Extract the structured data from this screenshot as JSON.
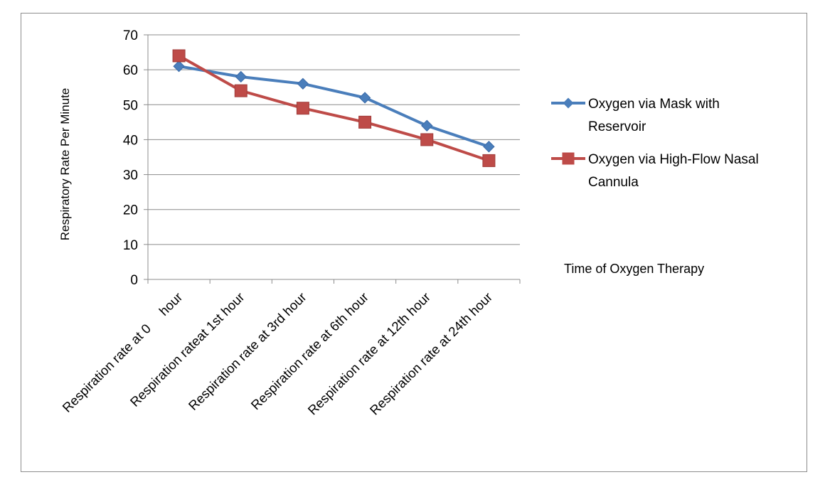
{
  "chart_data": {
    "type": "line",
    "categories": [
      "Respiration rate at 0     hour",
      "Respiration rateat 1st hour",
      "Respiration rate at 3rd hour",
      "Respiration rate at 6th hour",
      "Respiration rate at 12th hour",
      "Respiration rate at 24th hour"
    ],
    "series": [
      {
        "name": "Oxygen via Mask with Reservoir",
        "name_lines": [
          "Oxygen via Mask with",
          "Reservoir"
        ],
        "values": [
          61,
          58,
          56,
          52,
          44,
          38
        ],
        "color": "#4a7ebb",
        "marker": "diamond"
      },
      {
        "name": "Oxygen via High-Flow Nasal Cannula",
        "name_lines": [
          "Oxygen via High-Flow Nasal",
          "Cannula"
        ],
        "values": [
          64,
          54,
          49,
          45,
          40,
          34
        ],
        "color": "#be4b48",
        "marker": "square"
      }
    ],
    "ylabel": "Respiratory Rate Per Minute",
    "xlabel": "Time of Oxygen Therapy",
    "ylim": [
      0,
      70
    ],
    "yticks": [
      0,
      10,
      20,
      30,
      40,
      50,
      60,
      70
    ],
    "grid": true,
    "legend_position": "right"
  }
}
